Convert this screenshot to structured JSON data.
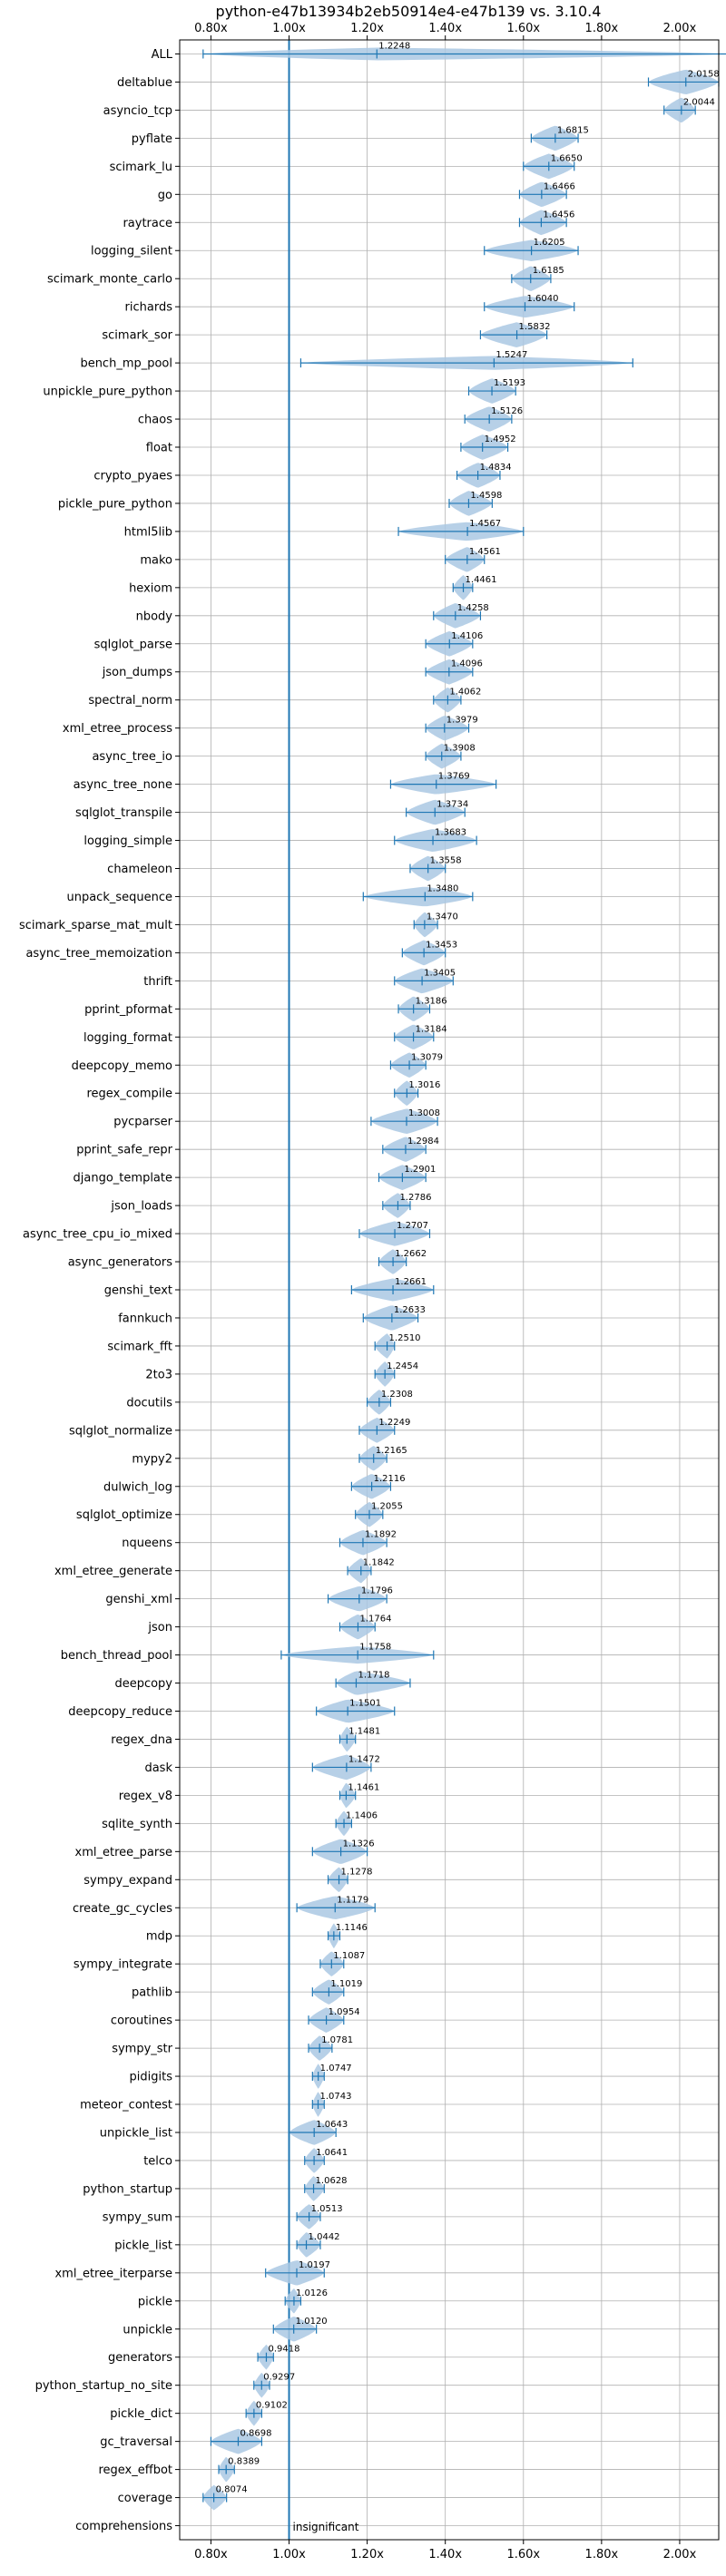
{
  "chart_data": {
    "type": "violin",
    "title": "python-e47b13934b2eb50914e4-e47b139 vs. 3.10.4",
    "xlim": [
      0.72,
      2.1
    ],
    "x_ticks": [
      "0.80x",
      "1.00x",
      "1.20x",
      "1.40x",
      "1.60x",
      "1.80x",
      "2.00x"
    ],
    "x_tick_values": [
      0.8,
      1.0,
      1.2,
      1.4,
      1.6,
      1.8,
      2.0
    ],
    "reference_line": 1.0,
    "reference_label": "insignificant",
    "grid": true,
    "color": "#1f77b4",
    "fill_color": "#aac8e3",
    "benchmarks": [
      {
        "name": "ALL",
        "median": 1.2248,
        "min": 0.78,
        "max": 2.12
      },
      {
        "name": "deltablue",
        "median": 2.0158,
        "min": 1.92,
        "max": 2.1
      },
      {
        "name": "asyncio_tcp",
        "median": 2.0044,
        "min": 1.96,
        "max": 2.04
      },
      {
        "name": "pyflate",
        "median": 1.6815,
        "min": 1.62,
        "max": 1.74
      },
      {
        "name": "scimark_lu",
        "median": 1.665,
        "min": 1.6,
        "max": 1.73
      },
      {
        "name": "go",
        "median": 1.6466,
        "min": 1.59,
        "max": 1.71
      },
      {
        "name": "raytrace",
        "median": 1.6456,
        "min": 1.59,
        "max": 1.71
      },
      {
        "name": "logging_silent",
        "median": 1.6205,
        "min": 1.5,
        "max": 1.74
      },
      {
        "name": "scimark_monte_carlo",
        "median": 1.6185,
        "min": 1.57,
        "max": 1.67
      },
      {
        "name": "richards",
        "median": 1.604,
        "min": 1.5,
        "max": 1.73
      },
      {
        "name": "scimark_sor",
        "median": 1.5832,
        "min": 1.49,
        "max": 1.66
      },
      {
        "name": "bench_mp_pool",
        "median": 1.5247,
        "min": 1.03,
        "max": 1.88
      },
      {
        "name": "unpickle_pure_python",
        "median": 1.5193,
        "min": 1.46,
        "max": 1.58
      },
      {
        "name": "chaos",
        "median": 1.5126,
        "min": 1.45,
        "max": 1.57
      },
      {
        "name": "float",
        "median": 1.4952,
        "min": 1.44,
        "max": 1.56
      },
      {
        "name": "crypto_pyaes",
        "median": 1.4834,
        "min": 1.43,
        "max": 1.54
      },
      {
        "name": "pickle_pure_python",
        "median": 1.4598,
        "min": 1.41,
        "max": 1.52
      },
      {
        "name": "html5lib",
        "median": 1.4567,
        "min": 1.28,
        "max": 1.6
      },
      {
        "name": "mako",
        "median": 1.4561,
        "min": 1.4,
        "max": 1.5
      },
      {
        "name": "hexiom",
        "median": 1.4461,
        "min": 1.42,
        "max": 1.47
      },
      {
        "name": "nbody",
        "median": 1.4258,
        "min": 1.37,
        "max": 1.49
      },
      {
        "name": "sqlglot_parse",
        "median": 1.4106,
        "min": 1.35,
        "max": 1.47
      },
      {
        "name": "json_dumps",
        "median": 1.4096,
        "min": 1.35,
        "max": 1.47
      },
      {
        "name": "spectral_norm",
        "median": 1.4062,
        "min": 1.37,
        "max": 1.44
      },
      {
        "name": "xml_etree_process",
        "median": 1.3979,
        "min": 1.35,
        "max": 1.46
      },
      {
        "name": "async_tree_io",
        "median": 1.3908,
        "min": 1.35,
        "max": 1.44
      },
      {
        "name": "async_tree_none",
        "median": 1.3769,
        "min": 1.26,
        "max": 1.53
      },
      {
        "name": "sqlglot_transpile",
        "median": 1.3734,
        "min": 1.3,
        "max": 1.45
      },
      {
        "name": "logging_simple",
        "median": 1.3683,
        "min": 1.27,
        "max": 1.48
      },
      {
        "name": "chameleon",
        "median": 1.3558,
        "min": 1.31,
        "max": 1.4
      },
      {
        "name": "unpack_sequence",
        "median": 1.348,
        "min": 1.19,
        "max": 1.47
      },
      {
        "name": "scimark_sparse_mat_mult",
        "median": 1.347,
        "min": 1.32,
        "max": 1.38
      },
      {
        "name": "async_tree_memoization",
        "median": 1.3453,
        "min": 1.29,
        "max": 1.4
      },
      {
        "name": "thrift",
        "median": 1.3405,
        "min": 1.27,
        "max": 1.42
      },
      {
        "name": "pprint_pformat",
        "median": 1.3186,
        "min": 1.28,
        "max": 1.36
      },
      {
        "name": "logging_format",
        "median": 1.3184,
        "min": 1.27,
        "max": 1.37
      },
      {
        "name": "deepcopy_memo",
        "median": 1.3079,
        "min": 1.26,
        "max": 1.35
      },
      {
        "name": "regex_compile",
        "median": 1.3016,
        "min": 1.27,
        "max": 1.33
      },
      {
        "name": "pycparser",
        "median": 1.3008,
        "min": 1.21,
        "max": 1.38
      },
      {
        "name": "pprint_safe_repr",
        "median": 1.2984,
        "min": 1.24,
        "max": 1.35
      },
      {
        "name": "django_template",
        "median": 1.2901,
        "min": 1.23,
        "max": 1.35
      },
      {
        "name": "json_loads",
        "median": 1.2786,
        "min": 1.24,
        "max": 1.31
      },
      {
        "name": "async_tree_cpu_io_mixed",
        "median": 1.2707,
        "min": 1.18,
        "max": 1.36
      },
      {
        "name": "async_generators",
        "median": 1.2662,
        "min": 1.23,
        "max": 1.3
      },
      {
        "name": "genshi_text",
        "median": 1.2661,
        "min": 1.16,
        "max": 1.37
      },
      {
        "name": "fannkuch",
        "median": 1.2633,
        "min": 1.19,
        "max": 1.33
      },
      {
        "name": "scimark_fft",
        "median": 1.251,
        "min": 1.22,
        "max": 1.27
      },
      {
        "name": "2to3",
        "median": 1.2454,
        "min": 1.22,
        "max": 1.27
      },
      {
        "name": "docutils",
        "median": 1.2308,
        "min": 1.2,
        "max": 1.26
      },
      {
        "name": "sqlglot_normalize",
        "median": 1.2249,
        "min": 1.18,
        "max": 1.27
      },
      {
        "name": "mypy2",
        "median": 1.2165,
        "min": 1.18,
        "max": 1.25
      },
      {
        "name": "dulwich_log",
        "median": 1.2116,
        "min": 1.16,
        "max": 1.26
      },
      {
        "name": "sqlglot_optimize",
        "median": 1.2055,
        "min": 1.17,
        "max": 1.24
      },
      {
        "name": "nqueens",
        "median": 1.1892,
        "min": 1.13,
        "max": 1.25
      },
      {
        "name": "xml_etree_generate",
        "median": 1.1842,
        "min": 1.15,
        "max": 1.21
      },
      {
        "name": "genshi_xml",
        "median": 1.1796,
        "min": 1.1,
        "max": 1.25
      },
      {
        "name": "json",
        "median": 1.1764,
        "min": 1.13,
        "max": 1.22
      },
      {
        "name": "bench_thread_pool",
        "median": 1.1758,
        "min": 0.98,
        "max": 1.37
      },
      {
        "name": "deepcopy",
        "median": 1.1718,
        "min": 1.12,
        "max": 1.31
      },
      {
        "name": "deepcopy_reduce",
        "median": 1.1501,
        "min": 1.07,
        "max": 1.27
      },
      {
        "name": "regex_dna",
        "median": 1.1481,
        "min": 1.13,
        "max": 1.17
      },
      {
        "name": "dask",
        "median": 1.1472,
        "min": 1.06,
        "max": 1.21
      },
      {
        "name": "regex_v8",
        "median": 1.1461,
        "min": 1.13,
        "max": 1.17
      },
      {
        "name": "sqlite_synth",
        "median": 1.1406,
        "min": 1.12,
        "max": 1.16
      },
      {
        "name": "xml_etree_parse",
        "median": 1.1326,
        "min": 1.06,
        "max": 1.2
      },
      {
        "name": "sympy_expand",
        "median": 1.1278,
        "min": 1.1,
        "max": 1.15
      },
      {
        "name": "create_gc_cycles",
        "median": 1.1179,
        "min": 1.02,
        "max": 1.22
      },
      {
        "name": "mdp",
        "median": 1.1146,
        "min": 1.1,
        "max": 1.13
      },
      {
        "name": "sympy_integrate",
        "median": 1.1087,
        "min": 1.08,
        "max": 1.14
      },
      {
        "name": "pathlib",
        "median": 1.1019,
        "min": 1.06,
        "max": 1.14
      },
      {
        "name": "coroutines",
        "median": 1.0954,
        "min": 1.05,
        "max": 1.14
      },
      {
        "name": "sympy_str",
        "median": 1.0781,
        "min": 1.05,
        "max": 1.11
      },
      {
        "name": "pidigits",
        "median": 1.0747,
        "min": 1.06,
        "max": 1.09
      },
      {
        "name": "meteor_contest",
        "median": 1.0743,
        "min": 1.06,
        "max": 1.09
      },
      {
        "name": "unpickle_list",
        "median": 1.0643,
        "min": 1.0,
        "max": 1.12
      },
      {
        "name": "telco",
        "median": 1.0641,
        "min": 1.04,
        "max": 1.09
      },
      {
        "name": "python_startup",
        "median": 1.0628,
        "min": 1.04,
        "max": 1.09
      },
      {
        "name": "sympy_sum",
        "median": 1.0513,
        "min": 1.02,
        "max": 1.08
      },
      {
        "name": "pickle_list",
        "median": 1.0442,
        "min": 1.02,
        "max": 1.08
      },
      {
        "name": "xml_etree_iterparse",
        "median": 1.0197,
        "min": 0.94,
        "max": 1.09
      },
      {
        "name": "pickle",
        "median": 1.0126,
        "min": 0.99,
        "max": 1.03
      },
      {
        "name": "unpickle",
        "median": 1.012,
        "min": 0.96,
        "max": 1.07
      },
      {
        "name": "generators",
        "median": 0.9418,
        "min": 0.92,
        "max": 0.96
      },
      {
        "name": "python_startup_no_site",
        "median": 0.9297,
        "min": 0.91,
        "max": 0.95
      },
      {
        "name": "pickle_dict",
        "median": 0.9102,
        "min": 0.89,
        "max": 0.93
      },
      {
        "name": "gc_traversal",
        "median": 0.8698,
        "min": 0.8,
        "max": 0.93
      },
      {
        "name": "regex_effbot",
        "median": 0.8389,
        "min": 0.82,
        "max": 0.86
      },
      {
        "name": "coverage",
        "median": 0.8074,
        "min": 0.78,
        "max": 0.84
      },
      {
        "name": "comprehensions",
        "median": null,
        "min": null,
        "max": null
      }
    ]
  }
}
